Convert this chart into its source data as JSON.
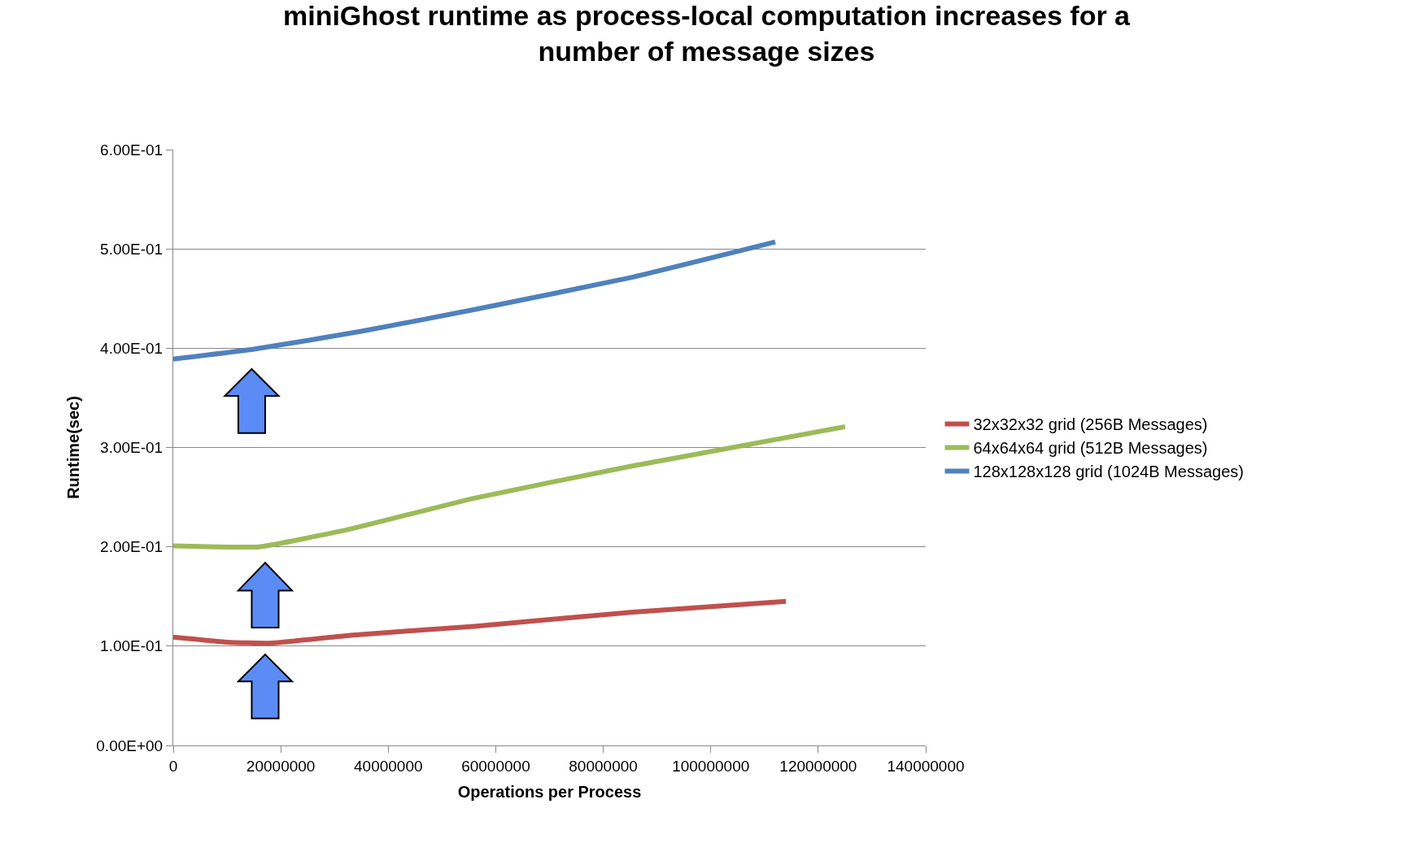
{
  "chart_data": {
    "type": "line",
    "title": "miniGhost runtime as process-local computation increases for a number of message sizes",
    "xlabel": "Operations per Process",
    "ylabel": "Runtime(sec)",
    "xlim": [
      0,
      140000000
    ],
    "xticks": [
      0,
      20000000,
      40000000,
      60000000,
      80000000,
      100000000,
      120000000,
      140000000
    ],
    "ylim": [
      0,
      0.6
    ],
    "yticks": [
      {
        "value": 0,
        "label": "0.00E+00"
      },
      {
        "value": 0.1,
        "label": "1.00E-01"
      },
      {
        "value": 0.2,
        "label": "2.00E-01"
      },
      {
        "value": 0.3,
        "label": "3.00E-01"
      },
      {
        "value": 0.4,
        "label": "4.00E-01"
      },
      {
        "value": 0.5,
        "label": "5.00E-01"
      },
      {
        "value": 0.6,
        "label": "6.00E-01"
      }
    ],
    "grid": "y",
    "legend": "right",
    "marker": "none",
    "line_style": "solid",
    "series": [
      {
        "name": "32x32x32 grid (256B Messages)",
        "color": "#c0504d",
        "x": [
          0,
          10000000,
          18000000,
          33000000,
          56000000,
          85000000,
          114000000
        ],
        "values": [
          0.109,
          0.104,
          0.103,
          0.111,
          0.12,
          0.134,
          0.145
        ]
      },
      {
        "name": "64x64x64 grid (512B Messages)",
        "color": "#9bbb59",
        "x": [
          0,
          16000000,
          33000000,
          56000000,
          85000000,
          125000000
        ],
        "values": [
          0.201,
          0.2,
          0.218,
          0.249,
          0.281,
          0.321
        ]
      },
      {
        "name": "128x128x128 grid (1024B Messages)",
        "color": "#4f81bd",
        "x": [
          0,
          15000000,
          35000000,
          57000000,
          85000000,
          112000000
        ],
        "values": [
          0.389,
          0.399,
          0.417,
          0.44,
          0.471,
          0.507
        ]
      }
    ]
  }
}
